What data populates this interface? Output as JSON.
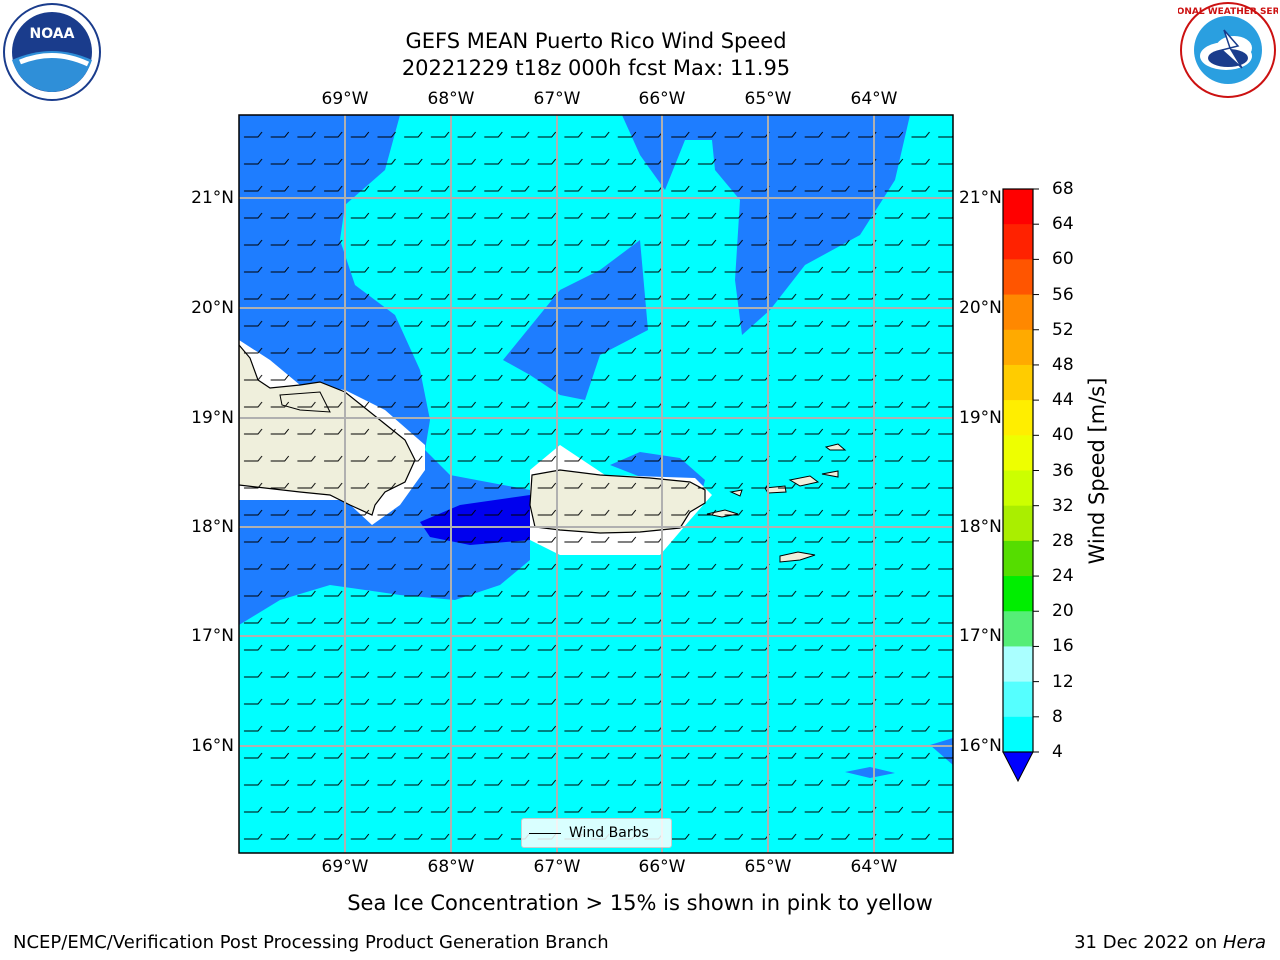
{
  "title_line1": "GEFS MEAN Puerto Rico Wind Speed",
  "title_line2": "20221229 t18z 000h fcst   Max: 11.95",
  "lon_ticks": [
    "69°W",
    "68°W",
    "67°W",
    "66°W",
    "65°W",
    "64°W"
  ],
  "lat_ticks": [
    "21°N",
    "20°N",
    "19°N",
    "18°N",
    "17°N",
    "16°N"
  ],
  "colorbar": {
    "label": "Wind Speed [m/s]",
    "ticks": [
      "68",
      "64",
      "60",
      "56",
      "52",
      "48",
      "44",
      "40",
      "36",
      "32",
      "28",
      "24",
      "20",
      "16",
      "12",
      "8",
      "4"
    ],
    "colors": [
      "#ff0000",
      "#ff2200",
      "#ff5500",
      "#ff8800",
      "#ffaa00",
      "#ffcc00",
      "#ffee00",
      "#eeff00",
      "#ccff00",
      "#aaee00",
      "#55dd00",
      "#00ee00",
      "#55ee77",
      "#aaffff",
      "#55ffff",
      "#00ffff",
      "#1e7dff"
    ],
    "under_color": "#0000ff"
  },
  "legend_label": "Wind Barbs",
  "sea_ice_note": "Sea Ice Concentration > 15% is shown in pink to yellow",
  "footer_left": "NCEP/EMC/Verification Post Processing Product Generation Branch",
  "footer_right_date": "31 Dec 2022 on ",
  "footer_right_host": "Hera",
  "logos": {
    "noaa_text": "NOAA",
    "nws_text": "NATIONAL WEATHER SERVICE"
  },
  "colors": {
    "ocean_light": "#00ffff",
    "ocean_mid": "#1e7dff",
    "ocean_dark": "#0000ee",
    "land": "#efefdc"
  }
}
